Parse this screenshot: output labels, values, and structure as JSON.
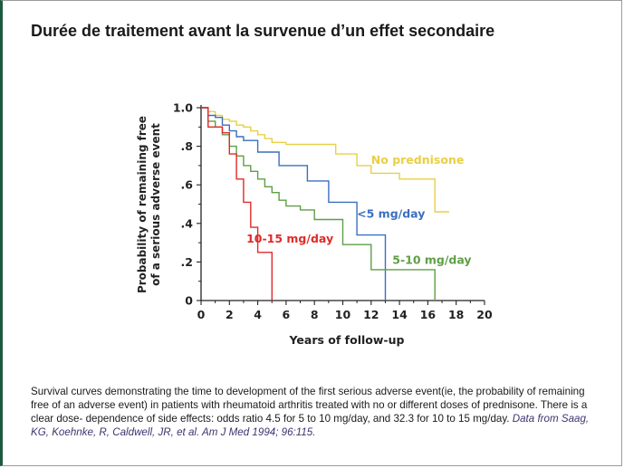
{
  "slide": {
    "title": "Durée de traitement avant la survenue d’un effet secondaire"
  },
  "caption": {
    "text": "Survival curves demonstrating the time to development of the first serious adverse event(ie, the probability of remaining free of an adverse event) in patients with rheumatoid arthritis treated with no or different doses of prednisone. There is a clear dose- dependence of side effects: odds ratio 4.5 for 5 to 10 mg/day, and 32.3 for 10 to 15 mg/day.",
    "source": "Data from Saag, KG, Koehnke, R, Caldwell, JR, et al. Am J Med 1994; 96:115."
  },
  "chart_data": {
    "type": "line",
    "step": true,
    "xlabel": "Years of follow-up",
    "ylabel_line1": "Probability of remaining free",
    "ylabel_line2": "of a serious adverse event",
    "xlim": [
      0,
      20
    ],
    "ylim": [
      0,
      1.0
    ],
    "x_ticks": [
      0,
      2,
      4,
      6,
      8,
      10,
      12,
      14,
      16,
      18,
      20
    ],
    "x_tick_labels": [
      "0",
      "2",
      "4",
      "6",
      "8",
      "10",
      "12",
      "14",
      "16",
      "18",
      "20"
    ],
    "y_ticks": [
      0,
      0.2,
      0.4,
      0.6,
      0.8,
      1.0
    ],
    "y_tick_labels": [
      "0",
      ".2",
      ".4",
      ".6",
      ".8",
      "1.0"
    ],
    "grid": false,
    "series": [
      {
        "name": "No prednisone",
        "color": "#e8cf45",
        "x": [
          0,
          0.5,
          1.0,
          1.5,
          2.0,
          2.5,
          3.0,
          3.5,
          4.0,
          4.5,
          5.0,
          6.0,
          8.0,
          9.5,
          11.0,
          12.0,
          14.0,
          16.5,
          17.5
        ],
        "y": [
          1.0,
          0.98,
          0.96,
          0.94,
          0.93,
          0.91,
          0.9,
          0.88,
          0.86,
          0.84,
          0.82,
          0.81,
          0.81,
          0.76,
          0.7,
          0.66,
          0.63,
          0.46,
          0.46
        ]
      },
      {
        "name": "<5 mg/day",
        "color": "#3a6fbf",
        "x": [
          0,
          0.5,
          1.0,
          1.5,
          2.0,
          2.5,
          3.0,
          4.0,
          5.5,
          7.5,
          9.0,
          11.0,
          13.0,
          13.0
        ],
        "y": [
          1.0,
          0.96,
          0.95,
          0.91,
          0.88,
          0.85,
          0.83,
          0.77,
          0.7,
          0.62,
          0.51,
          0.34,
          0.34,
          0.0
        ]
      },
      {
        "name": "5-10 mg/day",
        "color": "#5f9e47",
        "x": [
          0,
          0.5,
          1.0,
          1.5,
          2.0,
          2.5,
          3.0,
          3.5,
          4.0,
          4.5,
          5.0,
          5.5,
          6.0,
          7.0,
          8.0,
          10.0,
          12.0,
          13.0,
          16.5,
          16.5
        ],
        "y": [
          1.0,
          0.93,
          0.9,
          0.86,
          0.8,
          0.75,
          0.7,
          0.67,
          0.63,
          0.59,
          0.56,
          0.52,
          0.49,
          0.47,
          0.42,
          0.29,
          0.16,
          0.16,
          0.16,
          0.0
        ]
      },
      {
        "name": "10-15 mg/day",
        "color": "#e02a2a",
        "x": [
          0,
          0.5,
          1.5,
          2.0,
          2.5,
          3.0,
          3.5,
          4.0,
          5.0,
          5.0
        ],
        "y": [
          1.0,
          0.9,
          0.87,
          0.76,
          0.63,
          0.51,
          0.38,
          0.25,
          0.25,
          0.0
        ]
      }
    ],
    "annotations": [
      {
        "text": "No prednisone",
        "series": 0,
        "x": 12.0,
        "y": 0.71,
        "anchor": "start"
      },
      {
        "text": "<5 mg/day",
        "series": 1,
        "x": 11.0,
        "y": 0.43,
        "anchor": "start"
      },
      {
        "text": "5-10 mg/day",
        "series": 2,
        "x": 13.5,
        "y": 0.19,
        "anchor": "start"
      },
      {
        "text": "10-15 mg/day",
        "series": 3,
        "x": 3.2,
        "y": 0.3,
        "anchor": "start"
      }
    ]
  }
}
